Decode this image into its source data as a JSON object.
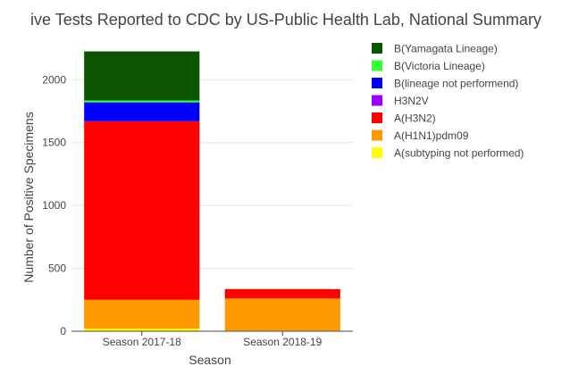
{
  "chart_data": {
    "type": "bar",
    "stacked": true,
    "title": "ive Tests Reported to CDC by US-Public Health Lab, National Summary",
    "xlabel": "Season",
    "ylabel": "Number of Positive Specimens",
    "categories": [
      "Season 2017-18",
      "Season 2018-19"
    ],
    "ylim": [
      0,
      2300
    ],
    "yticks": [
      0,
      500,
      1000,
      1500,
      2000
    ],
    "grid": true,
    "legend_position": "right",
    "series": [
      {
        "name": "A(subtyping not performed)",
        "color": "#ffff00",
        "values": [
          20,
          5
        ]
      },
      {
        "name": "A(H1N1)pdm09",
        "color": "#ff9900",
        "values": [
          230,
          255
        ]
      },
      {
        "name": "A(H3N2)",
        "color": "#ff0000",
        "values": [
          1420,
          75
        ]
      },
      {
        "name": "H3N2V",
        "color": "#9900ff",
        "values": [
          0,
          0
        ]
      },
      {
        "name": "B(lineage not performend)",
        "color": "#0000ff",
        "values": [
          150,
          0
        ]
      },
      {
        "name": "B(Victoria Lineage)",
        "color": "#33ff33",
        "values": [
          15,
          0
        ]
      },
      {
        "name": "B(Yamagata Lineage)",
        "color": "#0b5500",
        "values": [
          390,
          0
        ]
      }
    ]
  }
}
